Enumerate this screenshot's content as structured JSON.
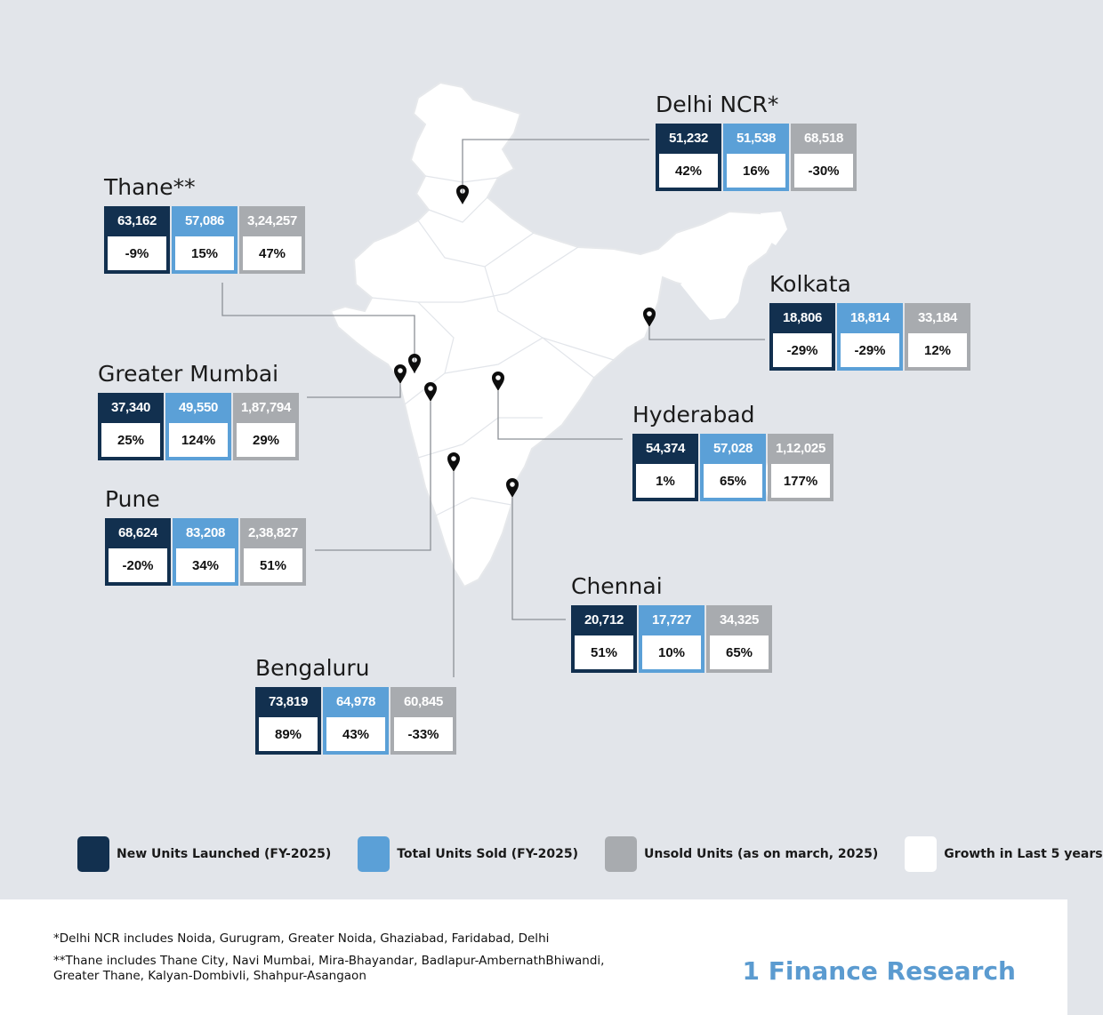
{
  "colors": {
    "background": "#e2e5ea",
    "map_fill": "#ffffff",
    "new_units": "#12304f",
    "units_sold": "#5ba0d7",
    "unsold_units": "#a8abaf",
    "growth": "#ffffff",
    "brand": "#5b9bd0"
  },
  "cities": [
    {
      "id": "delhi-ncr",
      "name": "Delhi NCR*",
      "new_units": "51,232",
      "new_growth": "42%",
      "sold_units": "51,538",
      "sold_growth": "16%",
      "unsold_units": "68,518",
      "unsold_growth": "-30%"
    },
    {
      "id": "thane",
      "name": "Thane**",
      "new_units": "63,162",
      "new_growth": "-9%",
      "sold_units": "57,086",
      "sold_growth": "15%",
      "unsold_units": "3,24,257",
      "unsold_growth": "47%"
    },
    {
      "id": "kolkata",
      "name": "Kolkata",
      "new_units": "18,806",
      "new_growth": "-29%",
      "sold_units": "18,814",
      "sold_growth": "-29%",
      "unsold_units": "33,184",
      "unsold_growth": "12%"
    },
    {
      "id": "greater-mumbai",
      "name": "Greater Mumbai",
      "new_units": "37,340",
      "new_growth": "25%",
      "sold_units": "49,550",
      "sold_growth": "124%",
      "unsold_units": "1,87,794",
      "unsold_growth": "29%"
    },
    {
      "id": "hyderabad",
      "name": "Hyderabad",
      "new_units": "54,374",
      "new_growth": "1%",
      "sold_units": "57,028",
      "sold_growth": "65%",
      "unsold_units": "1,12,025",
      "unsold_growth": "177%"
    },
    {
      "id": "pune",
      "name": "Pune",
      "new_units": "68,624",
      "new_growth": "-20%",
      "sold_units": "83,208",
      "sold_growth": "34%",
      "unsold_units": "2,38,827",
      "unsold_growth": "51%"
    },
    {
      "id": "chennai",
      "name": "Chennai",
      "new_units": "20,712",
      "new_growth": "51%",
      "sold_units": "17,727",
      "sold_growth": "10%",
      "unsold_units": "34,325",
      "unsold_growth": "65%"
    },
    {
      "id": "bengaluru",
      "name": "Bengaluru",
      "new_units": "73,819",
      "new_growth": "89%",
      "sold_units": "64,978",
      "sold_growth": "43%",
      "unsold_units": "60,845",
      "unsold_growth": "-33%"
    }
  ],
  "legend": {
    "new_label": "New Units Launched (FY-2025)",
    "sold_label": "Total Units Sold (FY-2025)",
    "unsold_label": "Unsold Units (as on march, 2025)",
    "growth_label": "Growth in Last 5 years"
  },
  "footnotes": {
    "note1": "*Delhi NCR includes Noida, Gurugram, Greater Noida, Ghaziabad, Faridabad, Delhi",
    "note2": "**Thane includes Thane City, Navi Mumbai, Mira-Bhayandar, Badlapur-AmbernathBhiwandi,\n   Greater Thane, Kalyan-Dombivli, Shahpur-Asangaon"
  },
  "brand": "1 Finance Research",
  "map": {
    "region": "India",
    "pin_icon": "map-pin-icon"
  }
}
